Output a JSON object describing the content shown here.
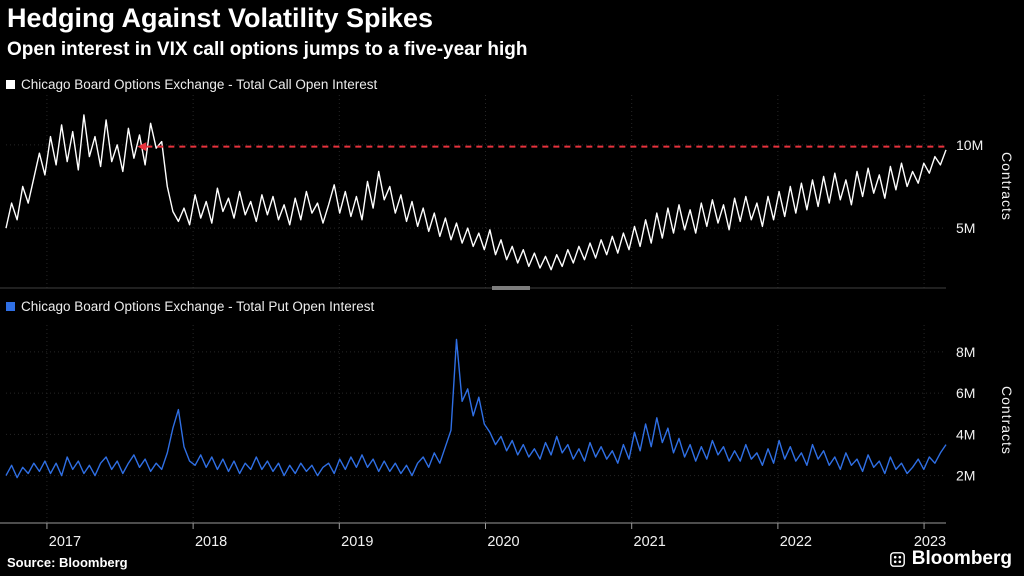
{
  "header": {
    "title": "Hedging Against Volatility Spikes",
    "subtitle": "Open interest in VIX call options jumps to a five-year high"
  },
  "footer": {
    "source": "Source: Bloomberg",
    "brand": "Bloomberg"
  },
  "x_axis": {
    "years": [
      "2017",
      "2018",
      "2019",
      "2020",
      "2021",
      "2022",
      "2023"
    ]
  },
  "chart_data": [
    {
      "type": "line",
      "series_name": "Chicago Board Options Exchange - Total Call Open Interest",
      "color": "#ffffff",
      "ylabel": "Contracts",
      "unit": "millions of contracts",
      "x_range": [
        2016.72,
        2023.15
      ],
      "ylim": [
        1.4,
        13.0
      ],
      "grid": true,
      "legend_position": "top-left",
      "yticks": [
        {
          "value": 5,
          "label": "5M"
        },
        {
          "value": 10,
          "label": "10M"
        }
      ],
      "annotation": {
        "type": "dashed-level-line",
        "value": 9.9,
        "x_start": 2017.68,
        "color": "#e8323c"
      },
      "values": [
        5.0,
        6.5,
        5.5,
        7.5,
        6.5,
        8.0,
        9.5,
        8.2,
        10.5,
        8.8,
        11.2,
        9.0,
        10.8,
        8.5,
        11.8,
        9.3,
        10.5,
        8.7,
        11.5,
        9.0,
        10.0,
        8.4,
        11.0,
        9.2,
        10.6,
        8.8,
        11.3,
        9.8,
        10.2,
        7.5,
        6.0,
        5.4,
        6.2,
        5.2,
        7.0,
        5.6,
        6.6,
        5.3,
        7.4,
        6.0,
        6.8,
        5.6,
        7.2,
        5.8,
        6.6,
        5.4,
        7.0,
        5.8,
        6.9,
        5.5,
        6.4,
        5.2,
        6.8,
        5.5,
        7.2,
        5.9,
        6.5,
        5.3,
        6.4,
        7.6,
        5.9,
        7.2,
        5.7,
        6.9,
        5.5,
        7.8,
        6.2,
        8.4,
        6.7,
        7.5,
        5.9,
        7.0,
        5.4,
        6.6,
        5.1,
        6.2,
        4.8,
        5.9,
        4.5,
        5.6,
        4.3,
        5.3,
        4.1,
        5.0,
        3.9,
        4.7,
        3.7,
        4.9,
        3.4,
        4.3,
        3.1,
        3.9,
        2.9,
        3.7,
        2.7,
        3.5,
        2.6,
        3.3,
        2.5,
        3.4,
        2.7,
        3.7,
        2.9,
        3.9,
        3.1,
        4.1,
        3.2,
        4.3,
        3.4,
        4.5,
        3.5,
        4.7,
        3.7,
        5.1,
        3.9,
        5.5,
        4.1,
        5.9,
        4.4,
        6.2,
        4.7,
        6.4,
        4.9,
        6.1,
        4.7,
        6.5,
        5.1,
        6.7,
        5.3,
        6.4,
        4.9,
        6.8,
        5.4,
        6.9,
        5.5,
        6.5,
        5.1,
        6.9,
        5.5,
        7.2,
        5.7,
        7.5,
        5.9,
        7.7,
        6.1,
        7.9,
        6.3,
        8.1,
        6.5,
        8.3,
        6.7,
        7.9,
        6.4,
        8.4,
        6.9,
        8.6,
        7.1,
        8.2,
        6.8,
        8.7,
        7.3,
        8.9,
        7.5,
        8.4,
        7.7,
        8.9,
        8.3,
        9.3,
        8.8,
        9.7
      ]
    },
    {
      "type": "line",
      "series_name": "Chicago Board Options Exchange - Total Put Open Interest",
      "color": "#2f6fe4",
      "ylabel": "Contracts",
      "unit": "millions of contracts",
      "x_range": [
        2016.72,
        2023.15
      ],
      "ylim": [
        -0.3,
        9.3
      ],
      "grid": true,
      "legend_position": "top-left",
      "yticks": [
        {
          "value": 2,
          "label": "2M"
        },
        {
          "value": 4,
          "label": "4M"
        },
        {
          "value": 6,
          "label": "6M"
        },
        {
          "value": 8,
          "label": "8M"
        }
      ],
      "values": [
        2.0,
        2.5,
        1.9,
        2.4,
        2.1,
        2.6,
        2.2,
        2.7,
        2.1,
        2.6,
        2.0,
        2.9,
        2.3,
        2.7,
        2.1,
        2.5,
        2.0,
        2.6,
        2.9,
        2.3,
        2.7,
        2.1,
        2.6,
        3.0,
        2.4,
        2.8,
        2.2,
        2.6,
        2.3,
        3.1,
        4.3,
        5.2,
        3.4,
        2.7,
        2.5,
        3.0,
        2.4,
        2.9,
        2.3,
        2.8,
        2.2,
        2.7,
        2.1,
        2.6,
        2.3,
        2.9,
        2.3,
        2.7,
        2.2,
        2.6,
        2.0,
        2.5,
        2.1,
        2.6,
        2.2,
        2.5,
        2.0,
        2.4,
        2.6,
        2.1,
        2.8,
        2.3,
        2.9,
        2.4,
        3.0,
        2.4,
        2.8,
        2.2,
        2.7,
        2.2,
        2.6,
        2.1,
        2.5,
        2.0,
        2.6,
        2.9,
        2.4,
        3.1,
        2.6,
        3.4,
        4.2,
        8.6,
        5.6,
        6.2,
        4.9,
        5.8,
        4.5,
        4.1,
        3.5,
        3.9,
        3.2,
        3.7,
        3.0,
        3.5,
        2.9,
        3.3,
        2.8,
        3.6,
        3.0,
        3.9,
        3.1,
        3.5,
        2.8,
        3.3,
        2.7,
        3.6,
        2.9,
        3.4,
        2.8,
        3.2,
        2.6,
        3.5,
        2.8,
        4.1,
        3.2,
        4.5,
        3.4,
        4.8,
        3.6,
        4.3,
        3.1,
        3.8,
        2.9,
        3.5,
        2.7,
        3.4,
        2.8,
        3.7,
        3.0,
        3.4,
        2.7,
        3.2,
        2.7,
        3.5,
        2.8,
        3.1,
        2.5,
        3.3,
        2.6,
        3.7,
        2.8,
        3.4,
        2.7,
        3.1,
        2.5,
        3.5,
        2.8,
        3.2,
        2.5,
        2.9,
        2.3,
        3.1,
        2.5,
        2.8,
        2.2,
        3.0,
        2.4,
        2.7,
        2.1,
        2.9,
        2.3,
        2.6,
        2.1,
        2.4,
        2.8,
        2.3,
        2.9,
        2.6,
        3.1,
        3.5
      ]
    }
  ]
}
